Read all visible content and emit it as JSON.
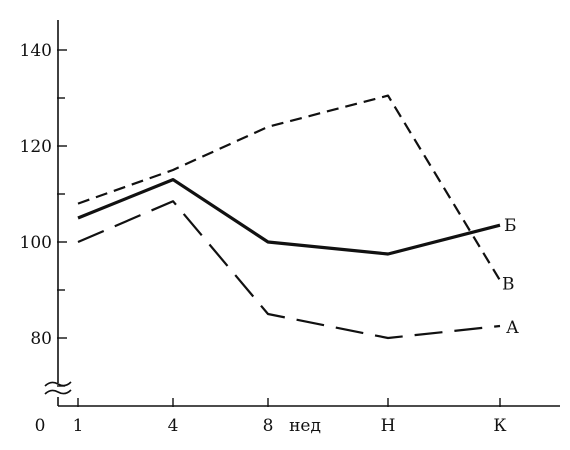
{
  "chart_data": {
    "type": "line",
    "title": "",
    "xlabel": "",
    "ylabel": "",
    "categories": [
      "1",
      "4",
      "8",
      "Н",
      "К"
    ],
    "x_origin_label": "0",
    "x_unit_label": "нед",
    "y_ticks": [
      80,
      100,
      120,
      140
    ],
    "y_minor_ticks": [
      70,
      90,
      110,
      130
    ],
    "ylim": [
      62,
      146
    ],
    "y_axis_break": true,
    "grid": false,
    "series": [
      {
        "name": "Б",
        "style": "solid",
        "color": "#111111",
        "values": [
          105,
          113,
          100,
          97.5,
          103.5
        ]
      },
      {
        "name": "В",
        "style": "short-dash",
        "color": "#111111",
        "values": [
          108,
          115,
          124,
          130.5,
          92
        ]
      },
      {
        "name": "А",
        "style": "long-dash",
        "color": "#111111",
        "values": [
          100,
          108.5,
          85,
          80,
          82.5
        ]
      }
    ]
  }
}
